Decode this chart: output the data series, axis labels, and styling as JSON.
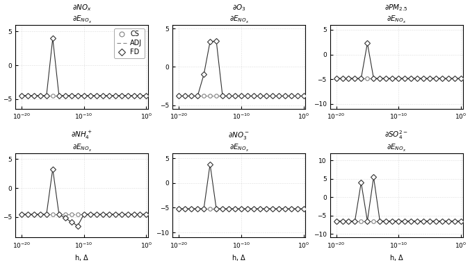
{
  "x_values": [
    1e-20,
    1e-19,
    1e-18,
    1e-17,
    1e-16,
    1e-15,
    1e-14,
    1e-13,
    1e-12,
    1e-11,
    1e-10,
    1e-09,
    1e-08,
    1e-07,
    1e-06,
    1e-05,
    0.0001,
    0.001,
    0.01,
    0.1,
    1.0
  ],
  "subplot_configs": [
    {
      "title": "$\\partial NO_x / \\partial E_{NO_x}$",
      "title_top": "$\\partial NO_x$",
      "title_bot": "$\\partial E_{NO_x}$",
      "ylim": [
        -6.5,
        6
      ],
      "yticks": [
        -5,
        0,
        5
      ],
      "cs_val": -4.5,
      "fd_data": {
        "flat": -4.5,
        "points": [
          [
            5,
            4.0
          ],
          [
            6,
            -4.5
          ]
        ]
      }
    },
    {
      "title_top": "$\\partial O_3$",
      "title_bot": "$\\partial E_{NO_x}$",
      "ylim": [
        -5.5,
        5.5
      ],
      "yticks": [
        -5,
        0,
        5
      ],
      "cs_val": -3.8,
      "fd_data": {
        "flat": -3.8,
        "points": [
          [
            4,
            -1.0
          ],
          [
            5,
            3.3
          ],
          [
            6,
            3.4
          ],
          [
            7,
            -3.8
          ]
        ]
      }
    },
    {
      "title_top": "$\\partial PM_{2.5}$",
      "title_bot": "$\\partial E_{NO_x}$",
      "ylim": [
        -11,
        6
      ],
      "yticks": [
        -10,
        -5,
        0,
        5
      ],
      "cs_val": -4.8,
      "fd_data": {
        "flat": -4.8,
        "points": [
          [
            5,
            2.3
          ],
          [
            6,
            -4.8
          ]
        ]
      }
    },
    {
      "title_top": "$\\partial NH_4^+$",
      "title_bot": "$\\partial E_{NO_x}$",
      "ylim": [
        -8.5,
        6
      ],
      "yticks": [
        -5,
        0,
        5
      ],
      "cs_val": -4.5,
      "fd_data": {
        "flat": -4.5,
        "points": [
          [
            5,
            3.3
          ],
          [
            6,
            -4.5
          ],
          [
            9,
            -6.5
          ],
          [
            10,
            -4.5
          ]
        ]
      }
    },
    {
      "title_top": "$\\partial NO_3^-$",
      "title_bot": "$\\partial E_{NO_x}$",
      "ylim": [
        -11,
        6
      ],
      "yticks": [
        -10,
        -5,
        0,
        5
      ],
      "cs_val": -5.2,
      "fd_data": {
        "flat": -5.2,
        "points": [
          [
            5,
            3.8
          ],
          [
            6,
            -5.2
          ]
        ]
      }
    },
    {
      "title_top": "$\\partial SO_4^{2-}$",
      "title_bot": "$\\partial E_{NO_x}$",
      "ylim": [
        -11,
        12
      ],
      "yticks": [
        -10,
        -5,
        0,
        5,
        10
      ],
      "cs_val": -6.5,
      "fd_data": {
        "flat": -6.5,
        "points": [
          [
            4,
            4.0
          ],
          [
            5,
            -6.5
          ],
          [
            6,
            5.5
          ],
          [
            7,
            -6.5
          ]
        ]
      }
    }
  ],
  "bg_color": "#f2f2f2",
  "grid_color": "#c8c8c8",
  "cs_color": "#808080",
  "fd_color": "#303030",
  "adj_color": "#808080"
}
